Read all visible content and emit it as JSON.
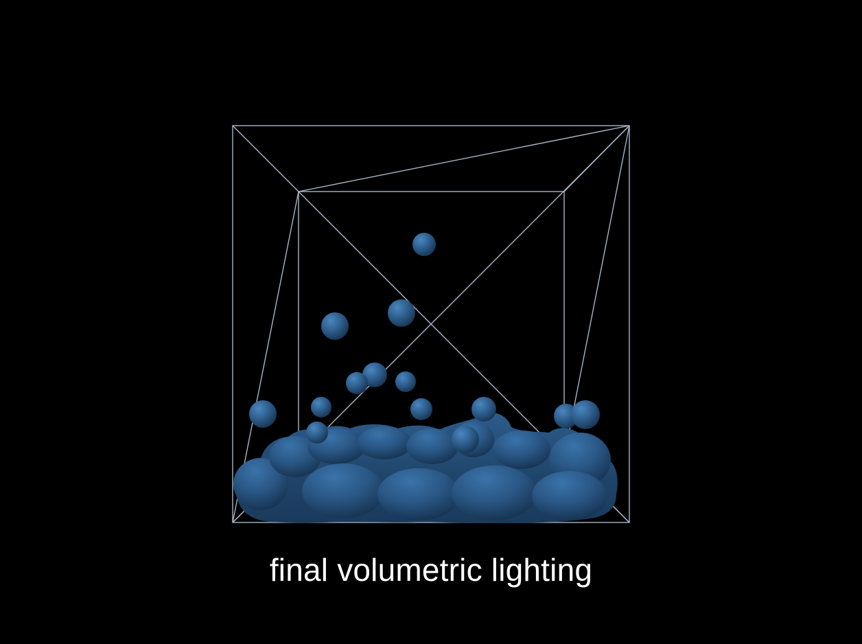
{
  "scene": {
    "caption": "final volumetric lighting",
    "background_color": "#000000",
    "wireframe_color": "#a7b6c8",
    "fluid_color": "#2c5b89",
    "fluid_shadow_color": "#16324f",
    "fluid_highlight_color": "#3f79b0"
  }
}
